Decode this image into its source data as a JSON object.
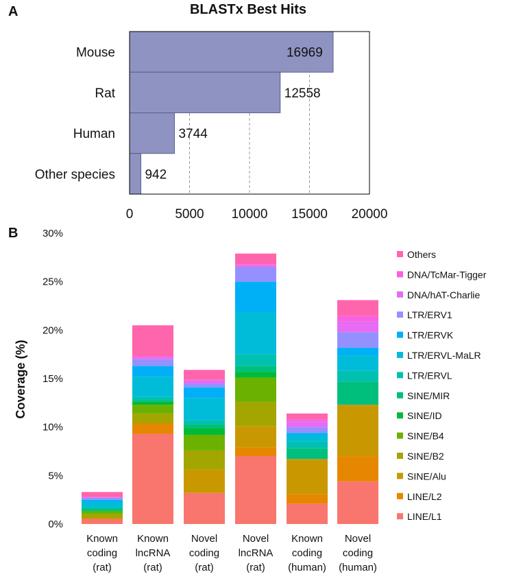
{
  "charts": [
    {
      "panel": "A",
      "type": "bar",
      "orientation": "horizontal",
      "title": "BLASTx Best Hits",
      "categories": [
        "Mouse",
        "Rat",
        "Human",
        "Other species"
      ],
      "values": [
        16969,
        12558,
        3744,
        942
      ],
      "value_labels": [
        "16969",
        "12558",
        "3744",
        "942"
      ],
      "xlim": [
        0,
        20000
      ],
      "xticks": [
        0,
        5000,
        10000,
        15000,
        20000
      ],
      "xtick_labels": [
        "0",
        "5000",
        "10000",
        "15000",
        "20000"
      ],
      "grid": "vertical dashed",
      "bar_color": "#8e93c1"
    },
    {
      "panel": "B",
      "type": "bar",
      "stacked": true,
      "ylabel": "Coverage (%)",
      "ylim": [
        0,
        30
      ],
      "yticks": [
        0,
        5,
        10,
        15,
        20,
        25,
        30
      ],
      "ytick_labels": [
        "0%",
        "5%",
        "10%",
        "15%",
        "20%",
        "25%",
        "30%"
      ],
      "categories": [
        [
          "Known",
          "coding",
          "(rat)"
        ],
        [
          "Known",
          "lncRNA",
          "(rat)"
        ],
        [
          "Novel",
          "coding",
          "(rat)"
        ],
        [
          "Novel",
          "lncRNA",
          "(rat)"
        ],
        [
          "Known",
          "coding",
          "(human)"
        ],
        [
          "Novel",
          "coding",
          "(human)"
        ]
      ],
      "legend_position": "right",
      "series": [
        {
          "name": "LINE/L1",
          "color": "#f8766d",
          "values": [
            0.5,
            9.3,
            3.2,
            7.0,
            2.1,
            4.4
          ]
        },
        {
          "name": "LINE/L2",
          "color": "#e58700",
          "values": [
            0.1,
            1.1,
            0.0,
            0.9,
            1.0,
            2.6
          ]
        },
        {
          "name": "SINE/Alu",
          "color": "#c99800",
          "values": [
            0.0,
            0.0,
            2.4,
            2.2,
            3.6,
            5.3
          ]
        },
        {
          "name": "SINE/B2",
          "color": "#a3a500",
          "values": [
            0.4,
            1.0,
            2.0,
            2.5,
            0.0,
            0.0
          ]
        },
        {
          "name": "SINE/B4",
          "color": "#6bb100",
          "values": [
            0.3,
            0.9,
            1.6,
            2.5,
            0.0,
            0.0
          ]
        },
        {
          "name": "SINE/ID",
          "color": "#00ba38",
          "values": [
            0.1,
            0.3,
            0.7,
            0.6,
            0.0,
            0.0
          ]
        },
        {
          "name": "SINE/MIR",
          "color": "#00bf7d",
          "values": [
            0.2,
            0.2,
            0.4,
            0.6,
            1.1,
            2.4
          ]
        },
        {
          "name": "LTR/ERVL",
          "color": "#00c0af",
          "values": [
            0.1,
            0.3,
            0.4,
            1.2,
            0.7,
            1.1
          ]
        },
        {
          "name": "LTR/ERVL-MaLR",
          "color": "#00bcd8",
          "values": [
            0.6,
            2.1,
            2.3,
            4.4,
            0.7,
            1.6
          ]
        },
        {
          "name": "LTR/ERVK",
          "color": "#00b0f6",
          "values": [
            0.2,
            1.1,
            1.1,
            3.1,
            0.2,
            0.8
          ]
        },
        {
          "name": "LTR/ERV1",
          "color": "#9590ff",
          "values": [
            0.2,
            0.7,
            0.4,
            1.5,
            0.6,
            1.6
          ]
        },
        {
          "name": "DNA/hAT-Charlie",
          "color": "#e76bf3",
          "values": [
            0.1,
            0.2,
            0.3,
            0.2,
            0.6,
            1.1
          ]
        },
        {
          "name": "DNA/TcMar-Tigger",
          "color": "#f862de",
          "values": [
            0.0,
            0.1,
            0.1,
            0.1,
            0.2,
            0.6
          ]
        },
        {
          "name": "Others",
          "color": "#ff65ac",
          "values": [
            0.5,
            3.2,
            1.0,
            1.1,
            0.6,
            1.6
          ]
        }
      ]
    }
  ]
}
